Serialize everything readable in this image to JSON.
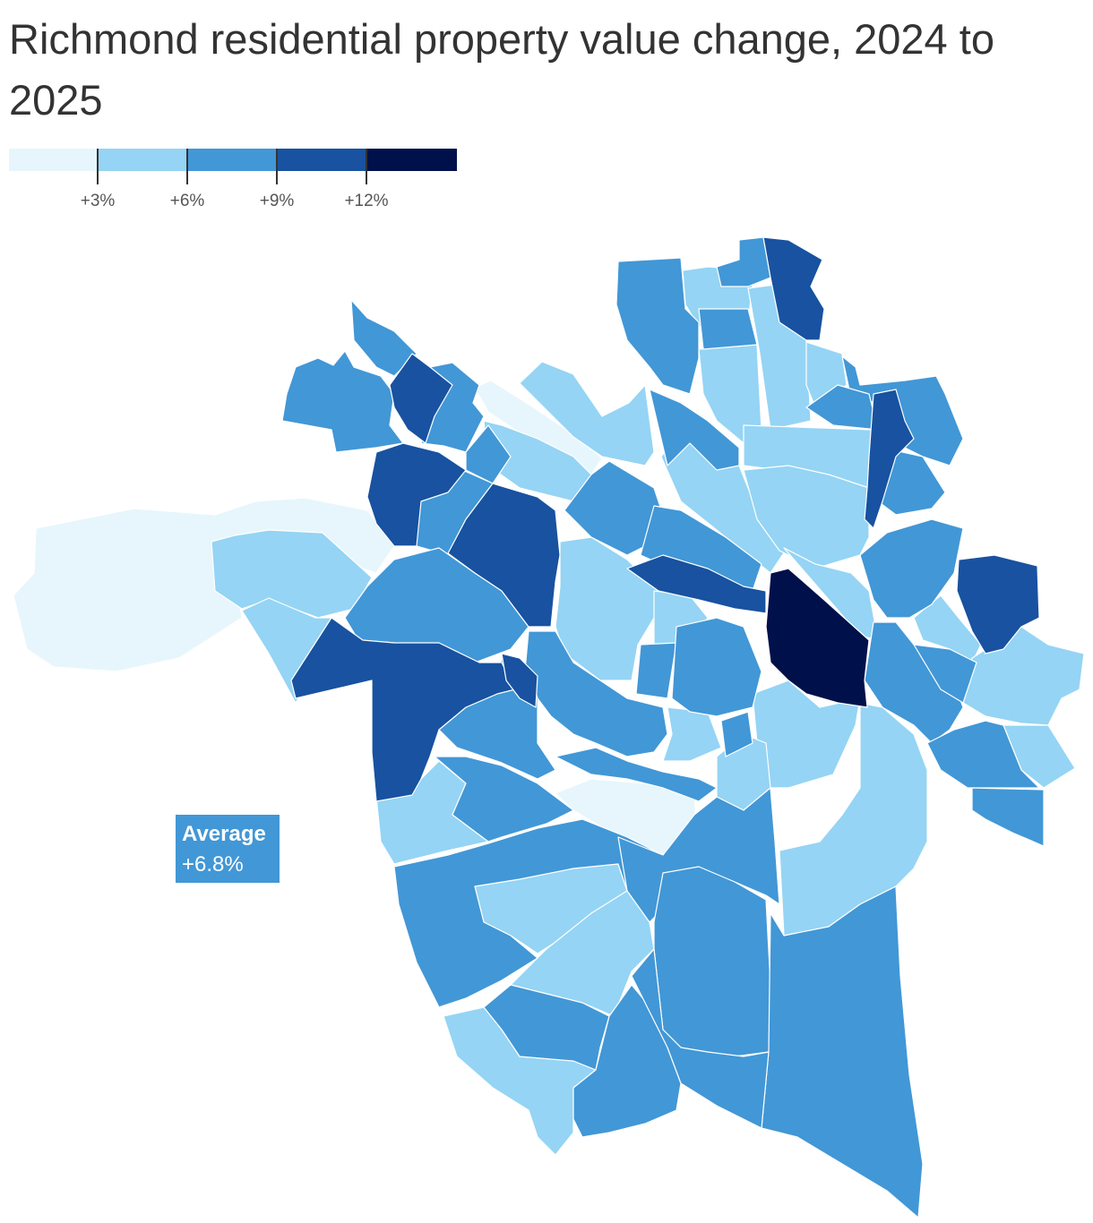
{
  "title": "Richmond residential property value change, 2024 to 2025",
  "legend": {
    "colors": [
      "#e6f6fc",
      "#95d4f4",
      "#4297d6",
      "#1852a0",
      "#00104a"
    ],
    "ticks": [
      "+3%",
      "+6%",
      "+9%",
      "+12%"
    ]
  },
  "annotation": {
    "label": "Average",
    "value": "+6.8%"
  }
}
